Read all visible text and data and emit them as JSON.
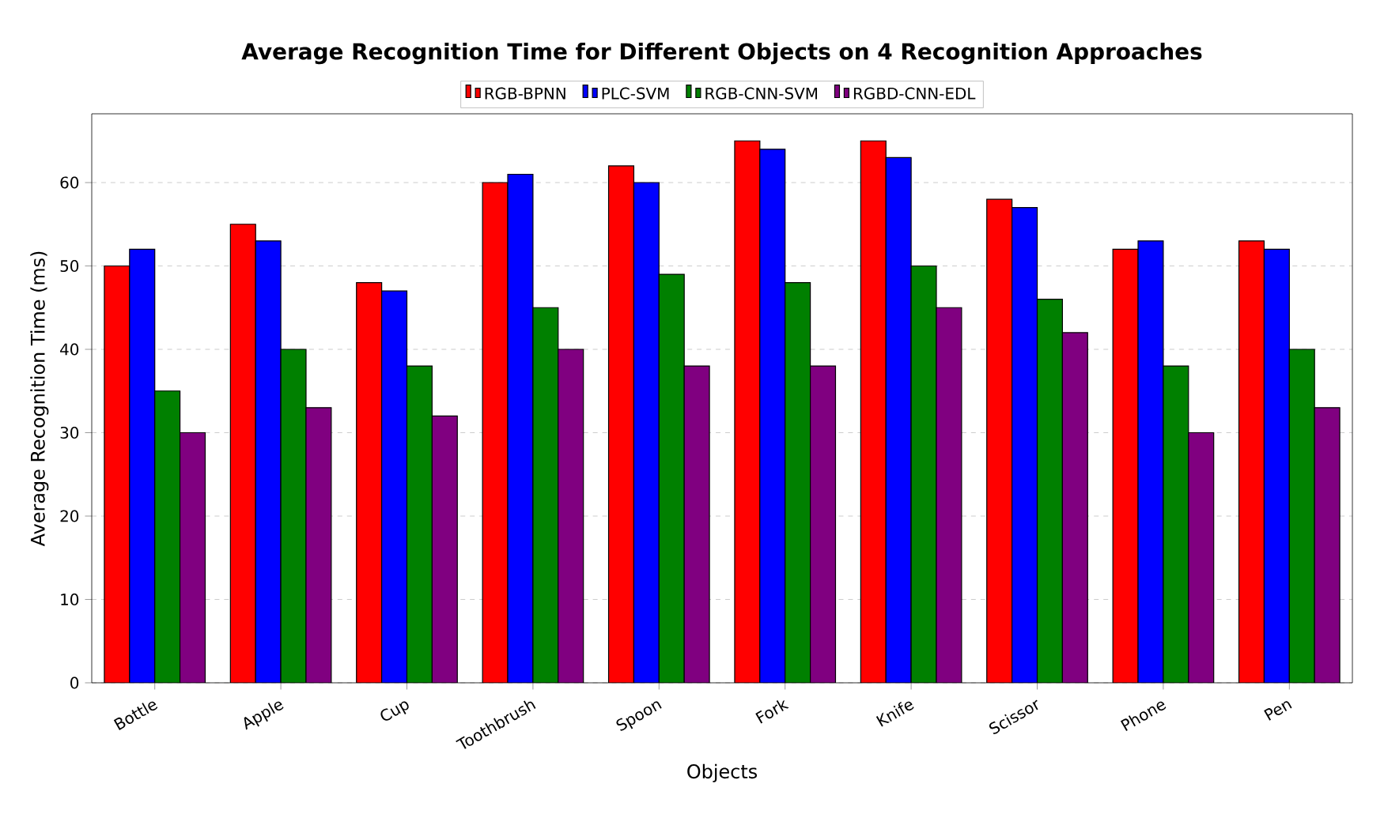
{
  "chart_data": {
    "type": "bar",
    "title": "Average Recognition Time for Different Objects on 4 Recognition Approaches",
    "xlabel": "Objects",
    "ylabel": "Average Recognition Time (ms)",
    "categories": [
      "Bottle",
      "Apple",
      "Cup",
      "Toothbrush",
      "Spoon",
      "Fork",
      "Knife",
      "Scissor",
      "Phone",
      "Pen"
    ],
    "series": [
      {
        "name": "RGB-BPNN",
        "color": "#ff0000",
        "values": [
          50,
          55,
          48,
          60,
          62,
          65,
          65,
          58,
          52,
          53
        ]
      },
      {
        "name": "PLC-SVM",
        "color": "#0000ff",
        "values": [
          52,
          53,
          47,
          61,
          60,
          64,
          63,
          57,
          53,
          52
        ]
      },
      {
        "name": "RGB-CNN-SVM",
        "color": "#008000",
        "values": [
          35,
          40,
          38,
          45,
          49,
          48,
          50,
          46,
          38,
          40
        ]
      },
      {
        "name": "RGBD-CNN-EDL",
        "color": "#800080",
        "values": [
          30,
          33,
          32,
          40,
          38,
          38,
          45,
          42,
          30,
          33
        ]
      }
    ],
    "ylim": [
      0,
      68.25
    ],
    "yticks": [
      0,
      10,
      20,
      30,
      40,
      50,
      60
    ],
    "grid": "y",
    "legend": "top"
  }
}
